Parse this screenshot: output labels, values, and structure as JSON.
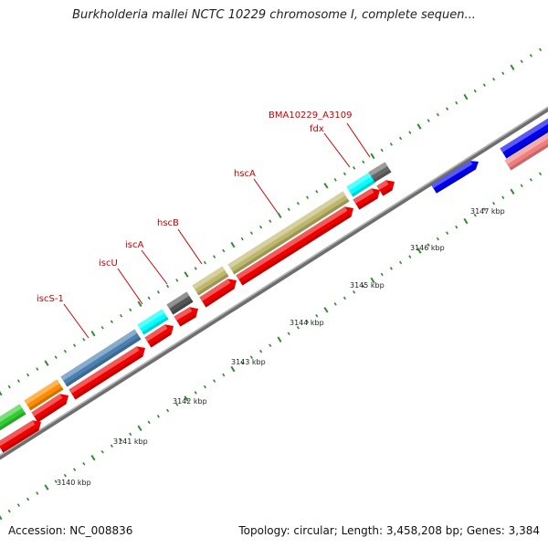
{
  "title": "Burkholderia mallei NCTC 10229 chromosome I, complete sequen...",
  "footer": {
    "accession": "Accession: NC_008836",
    "summary": "Topology: circular; Length: 3,458,208 bp; Genes: 3,384"
  },
  "colors": {
    "cds_reverse": "#ee0000",
    "backbone": "#888888",
    "tick": "#2e8b2e",
    "label_line": "#cc0000"
  },
  "gene_labels": [
    {
      "text": "iscS-1",
      "color_name": "steel-blue"
    },
    {
      "text": "iscU",
      "color_name": "cyan"
    },
    {
      "text": "iscA",
      "color_name": "dark-gray"
    },
    {
      "text": "hscB",
      "color_name": "khaki"
    },
    {
      "text": "hscA",
      "color_name": "khaki"
    },
    {
      "text": "fdx",
      "color_name": "cyan"
    },
    {
      "text": "BMA10229_A3109",
      "color_name": "dark-gray"
    }
  ],
  "kbp_labels": [
    "3140 kbp",
    "3141 kbp",
    "3142 kbp",
    "3143 kbp",
    "3144 kbp",
    "3145 kbp",
    "3146 kbp",
    "3147 kbp"
  ]
}
